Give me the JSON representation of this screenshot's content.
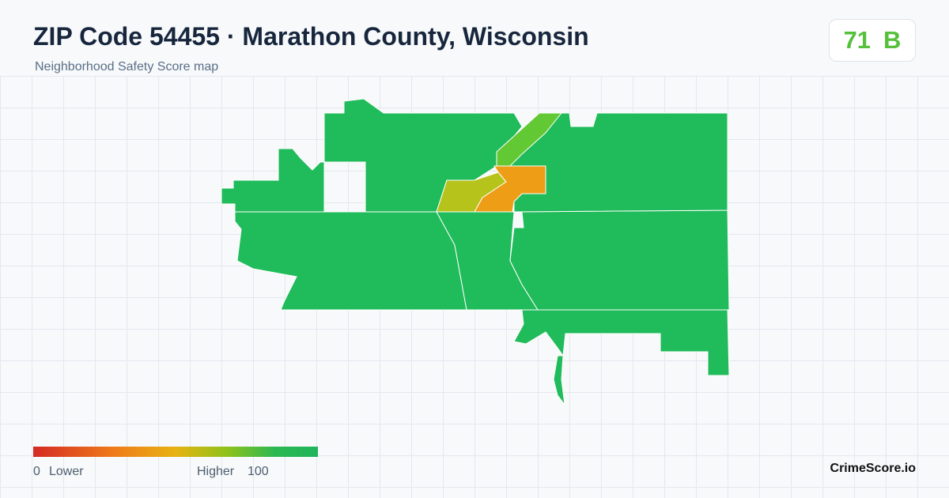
{
  "header": {
    "title": "ZIP Code 54455 · Marathon County, Wisconsin",
    "subtitle": "Neighborhood Safety Score map",
    "score": 71,
    "grade": "B"
  },
  "legend": {
    "min": 0,
    "low_label": "Lower",
    "high_label": "Higher",
    "max": 100
  },
  "footer": {
    "brand": "CrimeScore.io"
  }
}
